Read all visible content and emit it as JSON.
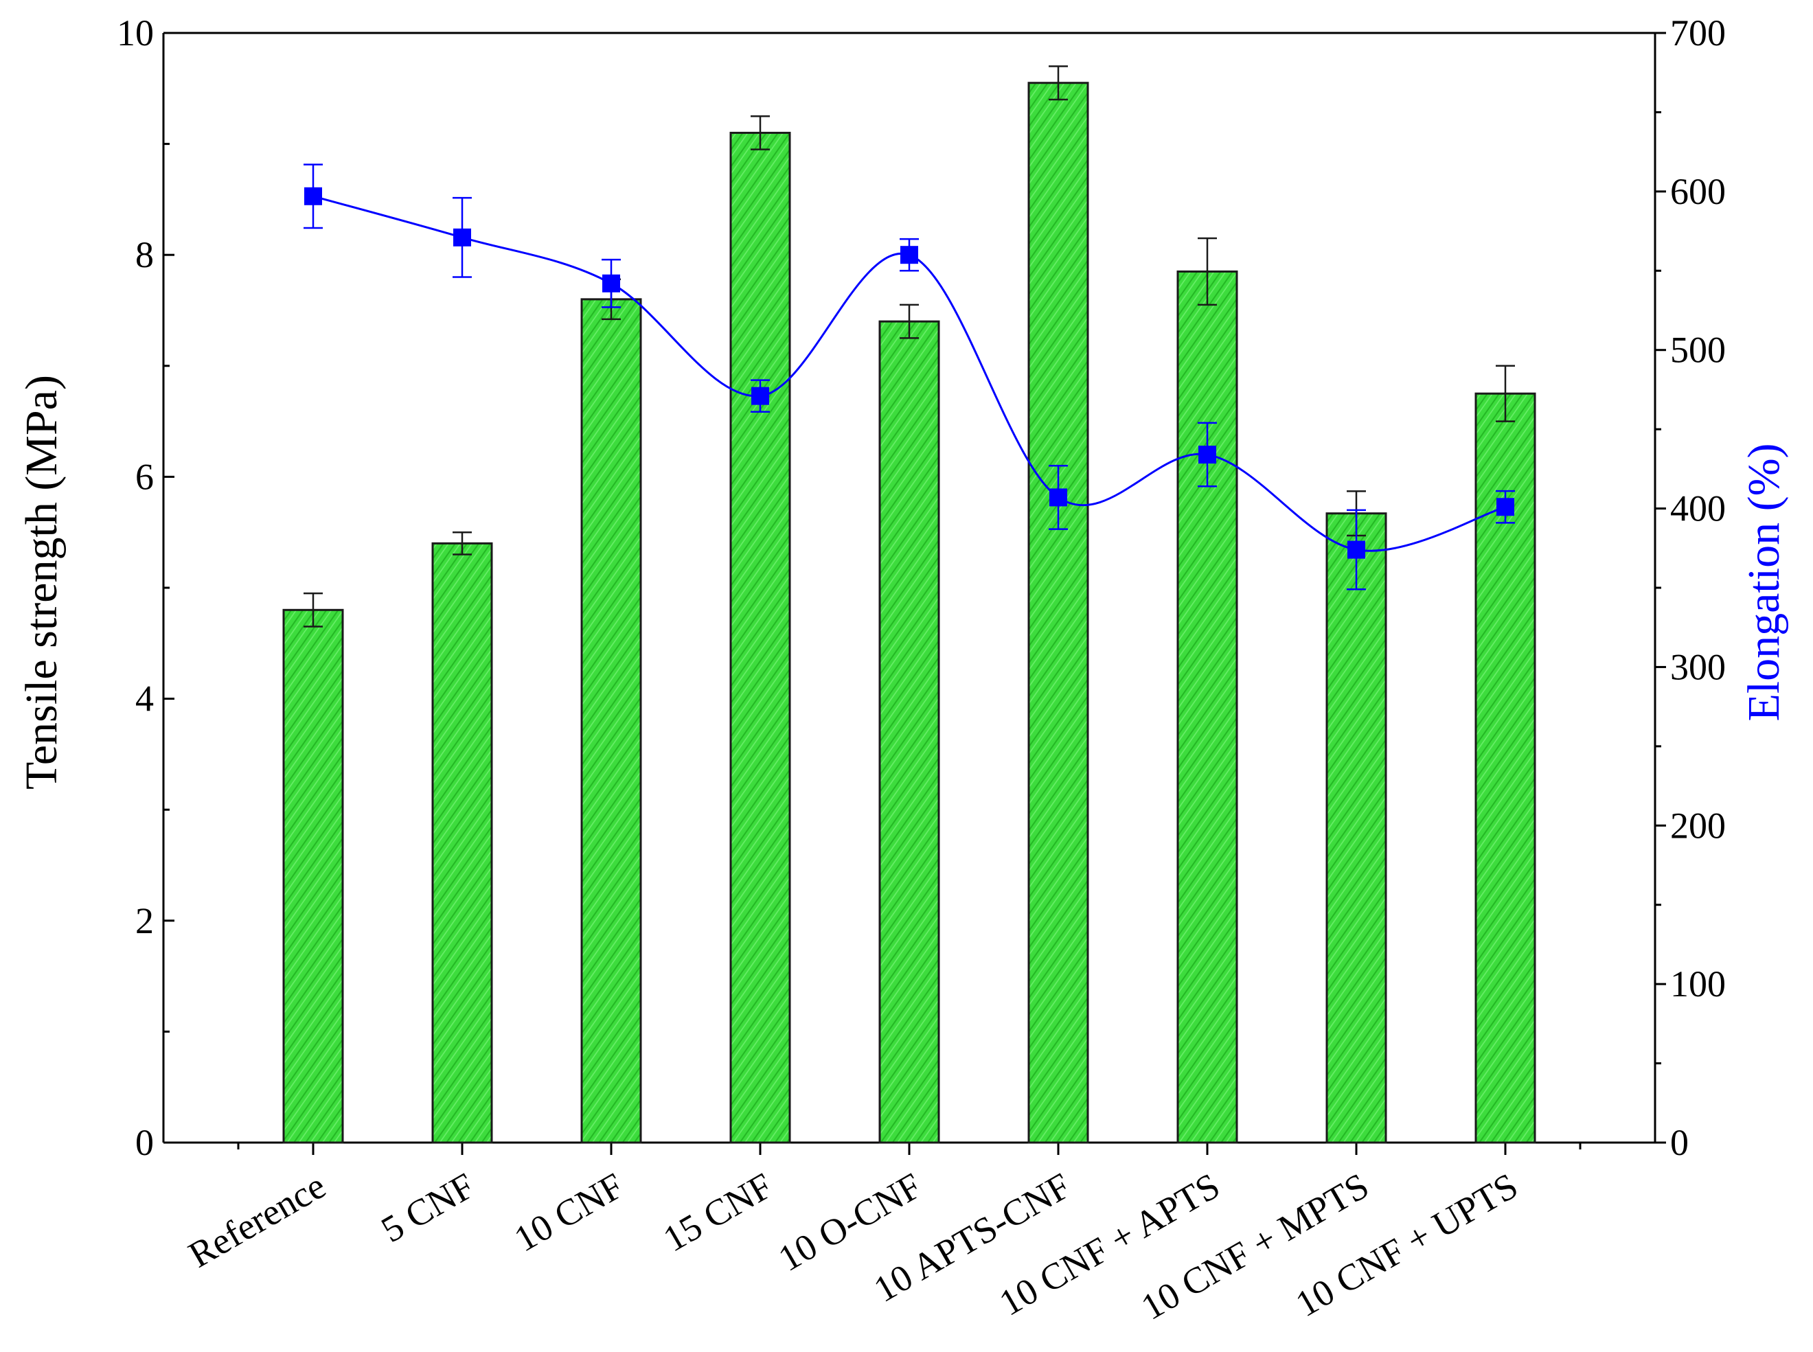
{
  "chart_data": {
    "type": "bar",
    "categories": [
      "Reference",
      "5 CNF",
      "10 CNF",
      "15 CNF",
      "10 O-CNF",
      "10 APTS-CNF",
      "10 CNF + APTS",
      "10 CNF + MPTS",
      "10 CNF + UPTS"
    ],
    "series": [
      {
        "axis": "left",
        "type": "bar",
        "values": [
          4.8,
          5.4,
          7.6,
          9.1,
          7.4,
          9.55,
          7.85,
          5.67,
          6.75
        ],
        "errors": [
          0.15,
          0.1,
          0.18,
          0.15,
          0.15,
          0.15,
          0.3,
          0.2,
          0.25
        ],
        "color": "#3ddc3d"
      },
      {
        "axis": "right",
        "type": "line",
        "values": [
          597,
          571,
          542,
          471,
          560,
          407,
          434,
          374,
          401
        ],
        "errors": [
          20,
          25,
          15,
          10,
          10,
          20,
          20,
          25,
          10
        ],
        "color": "#0000ff"
      }
    ],
    "ylabel": "Tensile strength (MPa)",
    "ylabel_right": "Elongation (%)",
    "ylim": [
      0,
      10
    ],
    "ylim_right": [
      0,
      700
    ],
    "yticks": [
      "0",
      "2",
      "4",
      "6",
      "8",
      "10"
    ],
    "yticks_right": [
      "0",
      "100",
      "200",
      "300",
      "400",
      "500",
      "600",
      "700"
    ],
    "colors": {
      "bar_fill": "#3ddc3d",
      "bar_stroke": "#1a1a1a",
      "line": "#0000ff",
      "right_axis_title": "#0000ff"
    }
  }
}
